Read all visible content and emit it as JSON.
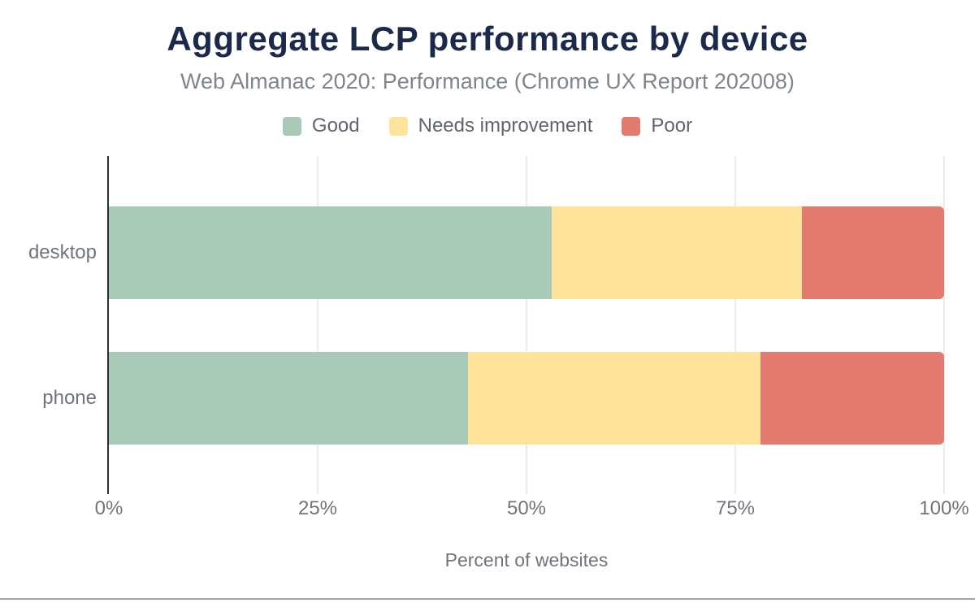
{
  "chart_data": {
    "type": "bar",
    "orientation": "horizontal",
    "stacked": true,
    "title": "Aggregate LCP performance by device",
    "subtitle": "Web Almanac 2020: Performance (Chrome UX Report 202008)",
    "categories": [
      "desktop",
      "phone"
    ],
    "series": [
      {
        "name": "Good",
        "color": "#a9c9b9",
        "values": [
          53,
          43
        ]
      },
      {
        "name": "Needs improvement",
        "color": "#fee49a",
        "values": [
          30,
          35
        ]
      },
      {
        "name": "Poor",
        "color": "#e37b71",
        "values": [
          17,
          22
        ]
      }
    ],
    "xlabel": "Percent of websites",
    "xlim": [
      0,
      100
    ],
    "x_ticks": [
      "0%",
      "25%",
      "50%",
      "75%",
      "100%"
    ],
    "x_tick_values": [
      0,
      25,
      50,
      75,
      100
    ],
    "legend_position": "top",
    "grid": "vertical-only"
  },
  "colors": {
    "background": "#ffffff",
    "title_text": "#1b2a4a",
    "subtitle_text": "#7f848d",
    "legend_text": "#60656d",
    "axis_text": "#6f747d",
    "axis_line": "#2d2d2d",
    "gridline": "#ececec",
    "bottom_rule": "#a5a5ab"
  }
}
